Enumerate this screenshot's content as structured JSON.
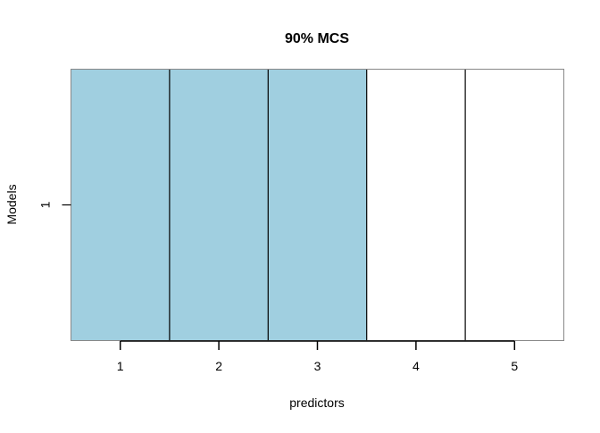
{
  "chart_data": {
    "type": "heatmap",
    "title": "90% MCS",
    "xlabel": "predictors",
    "ylabel": "Models",
    "x_ticks": [
      "1",
      "2",
      "3",
      "4",
      "5"
    ],
    "y_ticks": [
      "1"
    ],
    "rows": [
      {
        "model": "1",
        "included": [
          1,
          1,
          1,
          0,
          0
        ]
      }
    ],
    "colors": {
      "included": "#A0CFE0",
      "excluded": "#FFFFFF",
      "border": "#000000",
      "frame": "#888888"
    },
    "grid": false,
    "legend": "none"
  }
}
